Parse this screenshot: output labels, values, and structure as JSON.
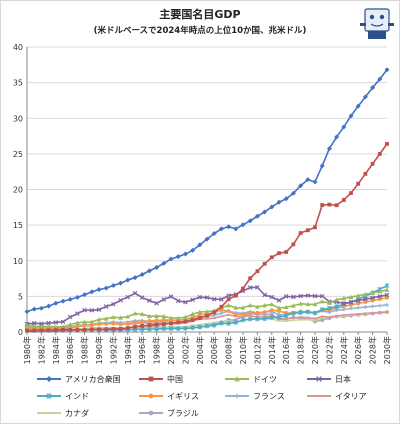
{
  "chart_data": {
    "type": "line",
    "title": "主要国名目GDP",
    "subtitle": "(米ドルベースで2024年時点の上位10か国、兆米ドル)",
    "xlabel": "",
    "ylabel": "",
    "ylim": [
      0,
      40
    ],
    "y_ticks": [
      0,
      5,
      10,
      15,
      20,
      25,
      30,
      35,
      40
    ],
    "x": [
      "1980年",
      "1981年",
      "1982年",
      "1983年",
      "1984年",
      "1985年",
      "1986年",
      "1987年",
      "1988年",
      "1989年",
      "1990年",
      "1991年",
      "1992年",
      "1993年",
      "1994年",
      "1995年",
      "1996年",
      "1997年",
      "1998年",
      "1999年",
      "2000年",
      "2001年",
      "2002年",
      "2003年",
      "2004年",
      "2005年",
      "2006年",
      "2007年",
      "2008年",
      "2009年",
      "2010年",
      "2011年",
      "2012年",
      "2013年",
      "2014年",
      "2015年",
      "2016年",
      "2017年",
      "2018年",
      "2019年",
      "2020年",
      "2021年",
      "2022年",
      "2023年",
      "2024年",
      "2025年",
      "2026年",
      "2027年",
      "2028年",
      "2029年",
      "2030年"
    ],
    "x_tick_labels": [
      "1980年",
      "1982年",
      "1984年",
      "1986年",
      "1988年",
      "1990年",
      "1992年",
      "1994年",
      "1996年",
      "1998年",
      "2000年",
      "2002年",
      "2004年",
      "2006年",
      "2008年",
      "2010年",
      "2012年",
      "2014年",
      "2016年",
      "2018年",
      "2020年",
      "2022年",
      "2024年",
      "2026年",
      "2028年",
      "2030年"
    ],
    "grid": true,
    "legend_position": "bottom",
    "series": [
      {
        "name": "アメリカ合衆国",
        "color": "#4472c4",
        "marker": "diamond",
        "values": [
          2.86,
          3.21,
          3.34,
          3.63,
          4.04,
          4.34,
          4.58,
          4.86,
          5.24,
          5.64,
          5.96,
          6.16,
          6.52,
          6.86,
          7.29,
          7.64,
          8.07,
          8.58,
          9.06,
          9.63,
          10.25,
          10.58,
          10.94,
          11.46,
          12.22,
          13.04,
          13.82,
          14.47,
          14.77,
          14.48,
          15.05,
          15.6,
          16.25,
          16.84,
          17.55,
          18.21,
          18.7,
          19.48,
          20.53,
          21.38,
          21.06,
          23.32,
          25.74,
          27.36,
          28.78,
          30.34,
          31.7,
          33.0,
          34.3,
          35.5,
          36.8
        ]
      },
      {
        "name": "中国",
        "color": "#c0504d",
        "marker": "square",
        "values": [
          0.19,
          0.2,
          0.21,
          0.23,
          0.26,
          0.31,
          0.3,
          0.27,
          0.31,
          0.35,
          0.36,
          0.38,
          0.43,
          0.44,
          0.56,
          0.73,
          0.86,
          0.96,
          1.03,
          1.09,
          1.21,
          1.34,
          1.47,
          1.66,
          1.96,
          2.29,
          2.75,
          3.55,
          4.59,
          5.1,
          6.09,
          7.55,
          8.53,
          9.57,
          10.48,
          11.06,
          11.23,
          12.31,
          13.89,
          14.28,
          14.69,
          17.82,
          17.88,
          17.79,
          18.53,
          19.5,
          20.8,
          22.2,
          23.6,
          25.0,
          26.4
        ]
      },
      {
        "name": "ドイツ",
        "color": "#9bbb59",
        "marker": "triangle",
        "values": [
          0.95,
          0.8,
          0.78,
          0.77,
          0.73,
          0.74,
          1.05,
          1.3,
          1.4,
          1.4,
          1.77,
          1.87,
          2.08,
          2.01,
          2.16,
          2.59,
          2.5,
          2.22,
          2.24,
          2.2,
          1.95,
          1.95,
          2.08,
          2.5,
          2.81,
          2.85,
          2.99,
          3.42,
          3.73,
          3.4,
          3.4,
          3.74,
          3.53,
          3.73,
          3.88,
          3.36,
          3.47,
          3.69,
          3.97,
          3.89,
          3.89,
          4.28,
          4.08,
          4.53,
          4.71,
          4.9,
          5.1,
          5.3,
          5.5,
          5.7,
          5.9
        ]
      },
      {
        "name": "日本",
        "color": "#8064a2",
        "marker": "x",
        "values": [
          1.13,
          1.24,
          1.16,
          1.26,
          1.34,
          1.43,
          2.09,
          2.58,
          3.07,
          3.05,
          3.13,
          3.58,
          3.91,
          4.45,
          4.91,
          5.45,
          4.83,
          4.41,
          4.03,
          4.56,
          4.97,
          4.37,
          4.18,
          4.52,
          4.89,
          4.83,
          4.6,
          4.58,
          5.11,
          5.29,
          5.76,
          6.23,
          6.27,
          5.21,
          4.9,
          4.44,
          5.0,
          4.93,
          5.04,
          5.12,
          5.05,
          5.03,
          4.26,
          4.21,
          4.03,
          4.19,
          4.4,
          4.6,
          4.8,
          5.0,
          5.2
        ]
      },
      {
        "name": "インド",
        "color": "#4bacc6",
        "marker": "star",
        "values": [
          0.19,
          0.2,
          0.2,
          0.22,
          0.21,
          0.23,
          0.25,
          0.28,
          0.3,
          0.3,
          0.32,
          0.27,
          0.29,
          0.28,
          0.33,
          0.36,
          0.39,
          0.41,
          0.42,
          0.46,
          0.47,
          0.48,
          0.51,
          0.61,
          0.71,
          0.82,
          0.94,
          1.22,
          1.2,
          1.34,
          1.68,
          1.82,
          1.83,
          1.86,
          2.04,
          2.1,
          2.29,
          2.65,
          2.7,
          2.84,
          2.67,
          3.15,
          3.35,
          3.57,
          3.89,
          4.2,
          4.6,
          5.0,
          5.5,
          6.0,
          6.5
        ]
      },
      {
        "name": "イギリス",
        "color": "#f79646",
        "marker": "circle",
        "values": [
          0.56,
          0.54,
          0.51,
          0.48,
          0.46,
          0.49,
          0.6,
          0.75,
          0.91,
          0.93,
          1.09,
          1.14,
          1.18,
          1.06,
          1.14,
          1.34,
          1.41,
          1.56,
          1.65,
          1.68,
          1.66,
          1.64,
          1.78,
          2.05,
          2.42,
          2.54,
          2.71,
          3.09,
          2.93,
          2.41,
          2.49,
          2.66,
          2.7,
          2.79,
          3.06,
          2.93,
          2.69,
          2.68,
          2.87,
          2.85,
          2.7,
          3.12,
          3.08,
          3.34,
          3.59,
          3.8,
          4.0,
          4.2,
          4.4,
          4.6,
          4.8
        ]
      },
      {
        "name": "フランス",
        "color": "#95b3d7",
        "marker": "plus",
        "values": [
          0.7,
          0.62,
          0.58,
          0.56,
          0.53,
          0.55,
          0.77,
          0.93,
          1.01,
          1.02,
          1.27,
          1.27,
          1.4,
          1.32,
          1.39,
          1.6,
          1.61,
          1.46,
          1.5,
          1.49,
          1.36,
          1.38,
          1.5,
          1.84,
          2.12,
          2.2,
          2.32,
          2.66,
          2.92,
          2.69,
          2.64,
          2.86,
          2.68,
          2.81,
          2.85,
          2.44,
          2.47,
          2.59,
          2.79,
          2.73,
          2.65,
          2.96,
          2.78,
          3.03,
          3.16,
          3.3,
          3.4,
          3.5,
          3.6,
          3.7,
          3.8
        ]
      },
      {
        "name": "イタリア",
        "color": "#d99694",
        "marker": "dash",
        "values": [
          0.48,
          0.43,
          0.43,
          0.44,
          0.44,
          0.46,
          0.64,
          0.8,
          0.87,
          0.93,
          1.18,
          1.24,
          1.32,
          1.06,
          1.1,
          1.17,
          1.31,
          1.24,
          1.27,
          1.25,
          1.14,
          1.17,
          1.27,
          1.57,
          1.8,
          1.85,
          1.95,
          2.21,
          2.4,
          2.19,
          2.13,
          2.29,
          2.09,
          2.14,
          2.16,
          1.84,
          1.88,
          1.96,
          2.09,
          2.01,
          1.9,
          2.18,
          2.07,
          2.25,
          2.37,
          2.45,
          2.52,
          2.6,
          2.67,
          2.74,
          2.8
        ]
      },
      {
        "name": "カナダ",
        "color": "#c3d69b",
        "marker": "dash",
        "values": [
          0.27,
          0.3,
          0.31,
          0.34,
          0.35,
          0.36,
          0.37,
          0.42,
          0.5,
          0.57,
          0.6,
          0.61,
          0.59,
          0.58,
          0.58,
          0.6,
          0.63,
          0.65,
          0.63,
          0.67,
          0.74,
          0.74,
          0.76,
          0.9,
          1.03,
          1.17,
          1.32,
          1.47,
          1.55,
          1.37,
          1.62,
          1.79,
          1.83,
          1.85,
          1.81,
          1.56,
          1.53,
          1.65,
          1.73,
          1.74,
          1.65,
          2.0,
          2.16,
          2.14,
          2.24,
          2.35,
          2.45,
          2.55,
          2.65,
          2.75,
          2.85
        ]
      },
      {
        "name": "ブラジル",
        "color": "#b3a2c7",
        "marker": "circle",
        "values": [
          0.24,
          0.26,
          0.28,
          0.19,
          0.19,
          0.22,
          0.26,
          0.29,
          0.32,
          0.44,
          0.46,
          0.41,
          0.39,
          0.44,
          0.56,
          0.77,
          0.85,
          0.88,
          0.86,
          0.6,
          0.66,
          0.56,
          0.51,
          0.56,
          0.67,
          0.89,
          1.11,
          1.4,
          1.7,
          1.67,
          2.21,
          2.62,
          2.47,
          2.47,
          2.46,
          1.8,
          1.8,
          2.06,
          1.92,
          1.87,
          1.48,
          1.67,
          1.95,
          2.17,
          2.19,
          2.3,
          2.4,
          2.5,
          2.6,
          2.7,
          2.8
        ]
      }
    ]
  }
}
